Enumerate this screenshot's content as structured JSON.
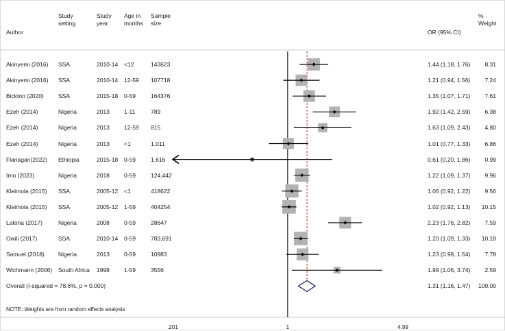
{
  "headers": {
    "author": "Author",
    "setting": [
      "Study",
      "setting"
    ],
    "year": [
      "Study",
      "year"
    ],
    "age": [
      "Age in",
      "months"
    ],
    "sample": [
      "Sample",
      "size"
    ],
    "or": "OR (95% CI)",
    "weight": [
      "%",
      "Weight"
    ]
  },
  "chart_data": {
    "type": "forest",
    "xscale": "log",
    "reference_line": 1,
    "pooled_line": 1.31,
    "x_ticks": [
      ".201",
      "1",
      "4.99"
    ],
    "x_tick_values": [
      0.201,
      1,
      4.99
    ],
    "xlim": [
      0.201,
      4.99
    ],
    "studies": [
      {
        "author": "Akinyemi (2016)",
        "setting": "SSA",
        "year": "2010-14",
        "age": "<12",
        "sample": "143623",
        "or": 1.44,
        "lo": 1.18,
        "hi": 1.76,
        "or_text": "1.44 (1.18, 1.76)",
        "weight": 8.31,
        "weight_text": "8.31"
      },
      {
        "author": "Akinyemi (2016)",
        "setting": "SSA",
        "year": "2010-14",
        "age": "12-59",
        "sample": "107718",
        "or": 1.21,
        "lo": 0.94,
        "hi": 1.56,
        "or_text": "1.21 (0.94, 1.56)",
        "weight": 7.24,
        "weight_text": "7.24"
      },
      {
        "author": "Bickton (2020)",
        "setting": "SSA",
        "year": "2015-18",
        "age": "0-59",
        "sample": "164376",
        "or": 1.35,
        "lo": 1.07,
        "hi": 1.71,
        "or_text": "1.35 (1.07, 1.71)",
        "weight": 7.61,
        "weight_text": "7.61"
      },
      {
        "author": "Ezeh (2014)",
        "setting": "Nigeria",
        "year": "2013",
        "age": "1-11",
        "sample": "789",
        "or": 1.92,
        "lo": 1.42,
        "hi": 2.59,
        "or_text": "1.92 (1.42, 2.59)",
        "weight": 6.38,
        "weight_text": "6.38"
      },
      {
        "author": "Ezeh (2014)",
        "setting": "Nigeria",
        "year": "2013",
        "age": "12-59",
        "sample": "815",
        "or": 1.63,
        "lo": 1.09,
        "hi": 2.43,
        "or_text": "1.63 (1.09, 2.43)",
        "weight": 4.8,
        "weight_text": "4.80"
      },
      {
        "author": "Ezeh (2014)",
        "setting": "Nigeria",
        "year": "2013",
        "age": "<1",
        "sample": "1,011",
        "or": 1.01,
        "lo": 0.77,
        "hi": 1.33,
        "or_text": "1.01 (0.77, 1.33)",
        "weight": 6.86,
        "weight_text": "6.86"
      },
      {
        "author": "Flanagan(2022)",
        "setting": "Ethiopia",
        "year": "2015-18",
        "age": "0-59",
        "sample": "1,616",
        "or": 0.61,
        "lo": 0.2,
        "hi": 1.86,
        "or_text": "0.61 (0.20, 1.86)",
        "weight": 0.99,
        "weight_text": "0.99",
        "arrow_left": true
      },
      {
        "author": "Imo (2023)",
        "setting": "Nigeria",
        "year": "2018",
        "age": "0-59",
        "sample": "124,442",
        "or": 1.22,
        "lo": 1.09,
        "hi": 1.37,
        "or_text": "1.22 (1.09, 1.37)",
        "weight": 9.96,
        "weight_text": "9.96"
      },
      {
        "author": "Kleimola (2015)",
        "setting": "SSA",
        "year": "2005-12",
        "age": "<1",
        "sample": "418622",
        "or": 1.06,
        "lo": 0.92,
        "hi": 1.22,
        "or_text": "1.06 (0.92, 1.22)",
        "weight": 9.56,
        "weight_text": "9.56"
      },
      {
        "author": "Kleimola (2015)",
        "setting": "SSA",
        "year": "2005-12",
        "age": "1-59",
        "sample": "404254",
        "or": 1.02,
        "lo": 0.92,
        "hi": 1.13,
        "or_text": "1.02 (0.92, 1.13)",
        "weight": 10.15,
        "weight_text": "10.15"
      },
      {
        "author": "Latona  (2017)",
        "setting": "Nigeria",
        "year": "2008",
        "age": "0-59",
        "sample": "28647",
        "or": 2.23,
        "lo": 1.76,
        "hi": 2.82,
        "or_text": "2.23 (1.76, 2.82)",
        "weight": 7.59,
        "weight_text": "7.59"
      },
      {
        "author": "Owili (2017)",
        "setting": "SSA",
        "year": "2010-14",
        "age": "0-59",
        "sample": "783,691",
        "or": 1.2,
        "lo": 1.09,
        "hi": 1.33,
        "or_text": "1.20 (1.09, 1.33)",
        "weight": 10.18,
        "weight_text": "10.18"
      },
      {
        "author": "Samuel (2018)",
        "setting": "Nigeria",
        "year": "2013",
        "age": "0-59",
        "sample": "10983",
        "or": 1.23,
        "lo": 0.98,
        "hi": 1.54,
        "or_text": "1.23 (0.98, 1.54)",
        "weight": 7.78,
        "weight_text": "7.78"
      },
      {
        "author": "Wichmann (2006)",
        "setting": "South Africa",
        "year": "1998",
        "age": "1-59",
        "sample": "3556",
        "or": 1.99,
        "lo": 1.06,
        "hi": 3.74,
        "or_text": "1.99 (1.06, 3.74)",
        "weight": 2.59,
        "weight_text": "2.59"
      }
    ],
    "overall": {
      "label": "Overall  (I-squared = 78.6%, p = 0.000)",
      "or": 1.31,
      "lo": 1.16,
      "hi": 1.47,
      "or_text": "1.31 (1.16, 1.47)",
      "weight_text": "100.00"
    }
  },
  "note": "NOTE: Weights are from random effects analysis",
  "colors": {
    "box": "#b3b3b3",
    "line": "#000000",
    "diamond": "#1f2a6b",
    "pooled": "#c0392b"
  }
}
